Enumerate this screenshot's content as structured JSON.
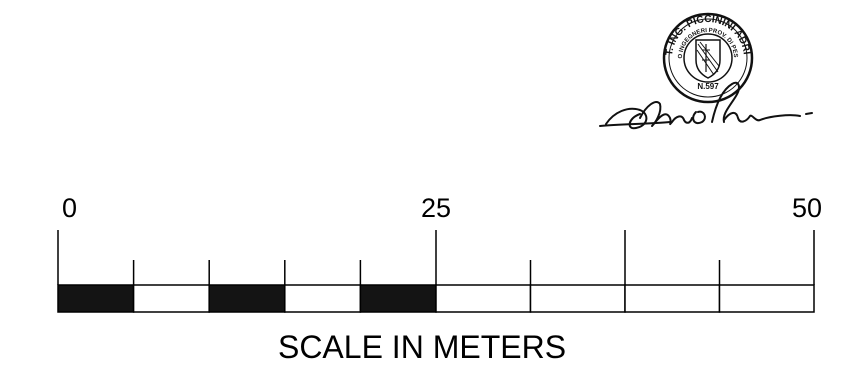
{
  "scale_bar": {
    "caption": "SCALE IN METERS",
    "unit": "m",
    "range": [
      0,
      50
    ],
    "tick_labels": [
      {
        "value": 0,
        "text": "0"
      },
      {
        "value": 25,
        "text": "25"
      },
      {
        "value": 50,
        "text": "50"
      }
    ],
    "segment_boundaries": [
      0,
      5,
      10,
      15,
      20,
      25,
      31.25,
      37.5,
      43.75,
      50
    ],
    "filled_segments": [
      [
        0,
        5
      ],
      [
        10,
        15
      ],
      [
        20,
        25
      ]
    ],
    "major_ticks": [
      0,
      25,
      37.5,
      50
    ],
    "minor_ticks": [
      5,
      10,
      15,
      20,
      31.25,
      43.75
    ],
    "colors": {
      "ink": "#000000",
      "fill": "#141414"
    }
  },
  "stamp": {
    "seal_text_outer": "DOTT. ING. PICCININI ADRIANO",
    "seal_text_inner": "ALBO INGEGNERI PROV. DI PESARO",
    "seal_number": "N.597",
    "signature": "handwritten-signature"
  }
}
